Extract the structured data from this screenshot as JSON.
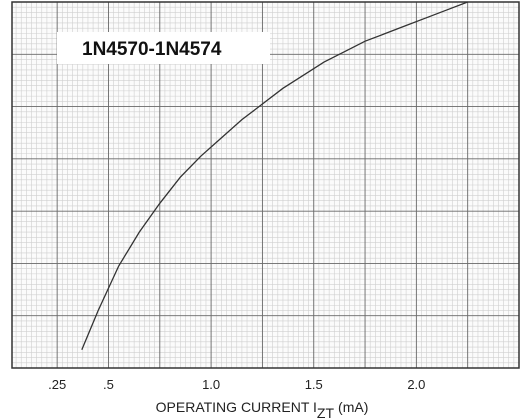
{
  "chart_data": {
    "type": "line",
    "title": "1N4570-1N4574",
    "xlabel": {
      "text": "OPERATING CURRENT I",
      "sub": "ZT",
      "unit": "(mA)"
    },
    "ylabel": "",
    "x_ticks": [
      {
        "value": 0.25,
        "label": ".25"
      },
      {
        "value": 0.5,
        "label": ".5"
      },
      {
        "value": 1.0,
        "label": "1.0"
      },
      {
        "value": 1.5,
        "label": "1.5"
      },
      {
        "value": 2.0,
        "label": "2.0"
      }
    ],
    "xlim": [
      0.03,
      2.5
    ],
    "ylim": [
      0,
      7
    ],
    "y_gridlines": [
      1,
      2,
      3,
      4,
      5,
      6
    ],
    "grid": true,
    "series": [
      {
        "color": "#333333",
        "x": [
          0.37,
          0.45,
          0.55,
          0.65,
          0.75,
          0.85,
          0.95,
          1.05,
          1.15,
          1.25,
          1.35,
          1.45,
          1.55,
          1.65,
          1.75,
          1.85,
          1.95,
          2.05,
          2.15,
          2.25
        ],
        "y": [
          0.35,
          1.1,
          1.95,
          2.6,
          3.15,
          3.65,
          4.05,
          4.4,
          4.75,
          5.05,
          5.35,
          5.6,
          5.85,
          6.05,
          6.25,
          6.4,
          6.55,
          6.7,
          6.85,
          7.0
        ]
      }
    ]
  }
}
